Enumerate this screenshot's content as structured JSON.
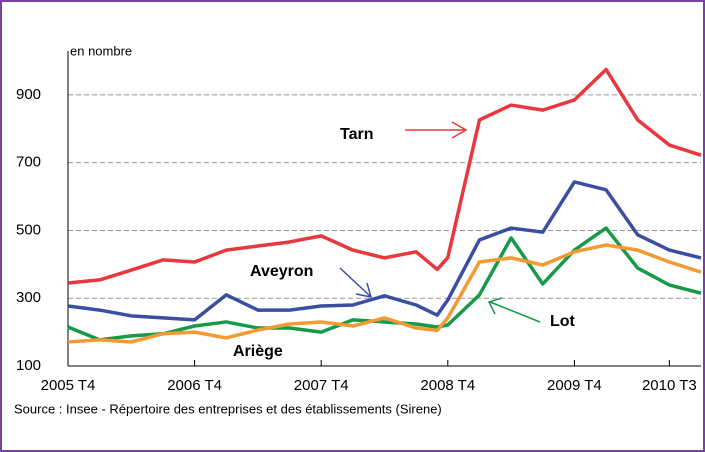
{
  "chart_data": {
    "type": "line",
    "y_label": "en nombre",
    "source": "Source : Insee - Répertoire des entreprises et des établissements (Sirene)",
    "x": [
      0,
      3,
      6,
      9,
      12,
      15,
      18,
      21,
      24,
      27,
      30,
      33,
      35,
      36,
      39,
      42,
      45,
      48,
      51,
      54,
      57,
      60
    ],
    "xlim": [
      0,
      60
    ],
    "xticks": [
      {
        "value": 0,
        "label": "2005 T4"
      },
      {
        "value": 12,
        "label": "2006 T4"
      },
      {
        "value": 24,
        "label": "2007 T4"
      },
      {
        "value": 36,
        "label": "2008 T4"
      },
      {
        "value": 48,
        "label": "2009 T4"
      },
      {
        "value": 57,
        "label": "2010 T3"
      }
    ],
    "ylim": [
      100,
      1000
    ],
    "yticks": [
      100,
      300,
      500,
      700,
      900
    ],
    "grid": true,
    "series": [
      {
        "name": "Tarn",
        "color": "#e8383d",
        "values": [
          345,
          354,
          383,
          413,
          407,
          442,
          454,
          466,
          484,
          442,
          419,
          437,
          385,
          420,
          826,
          870,
          855,
          885,
          975,
          826,
          752,
          722
        ]
      },
      {
        "name": "Aveyron",
        "color": "#3a4fa3",
        "values": [
          277,
          265,
          248,
          242,
          236,
          310,
          265,
          265,
          277,
          280,
          307,
          280,
          250,
          295,
          472,
          507,
          495,
          643,
          620,
          487,
          442,
          419
        ]
      },
      {
        "name": "Lot",
        "color": "#159a48",
        "values": [
          215,
          177,
          189,
          195,
          218,
          230,
          212,
          212,
          200,
          236,
          230,
          224,
          215,
          221,
          310,
          478,
          342,
          442,
          507,
          389,
          339,
          315
        ]
      },
      {
        "name": "Ariège",
        "color": "#f39a33",
        "values": [
          171,
          177,
          171,
          195,
          200,
          183,
          206,
          224,
          230,
          218,
          242,
          212,
          205,
          242,
          407,
          419,
          398,
          437,
          457,
          442,
          407,
          377
        ]
      }
    ]
  }
}
